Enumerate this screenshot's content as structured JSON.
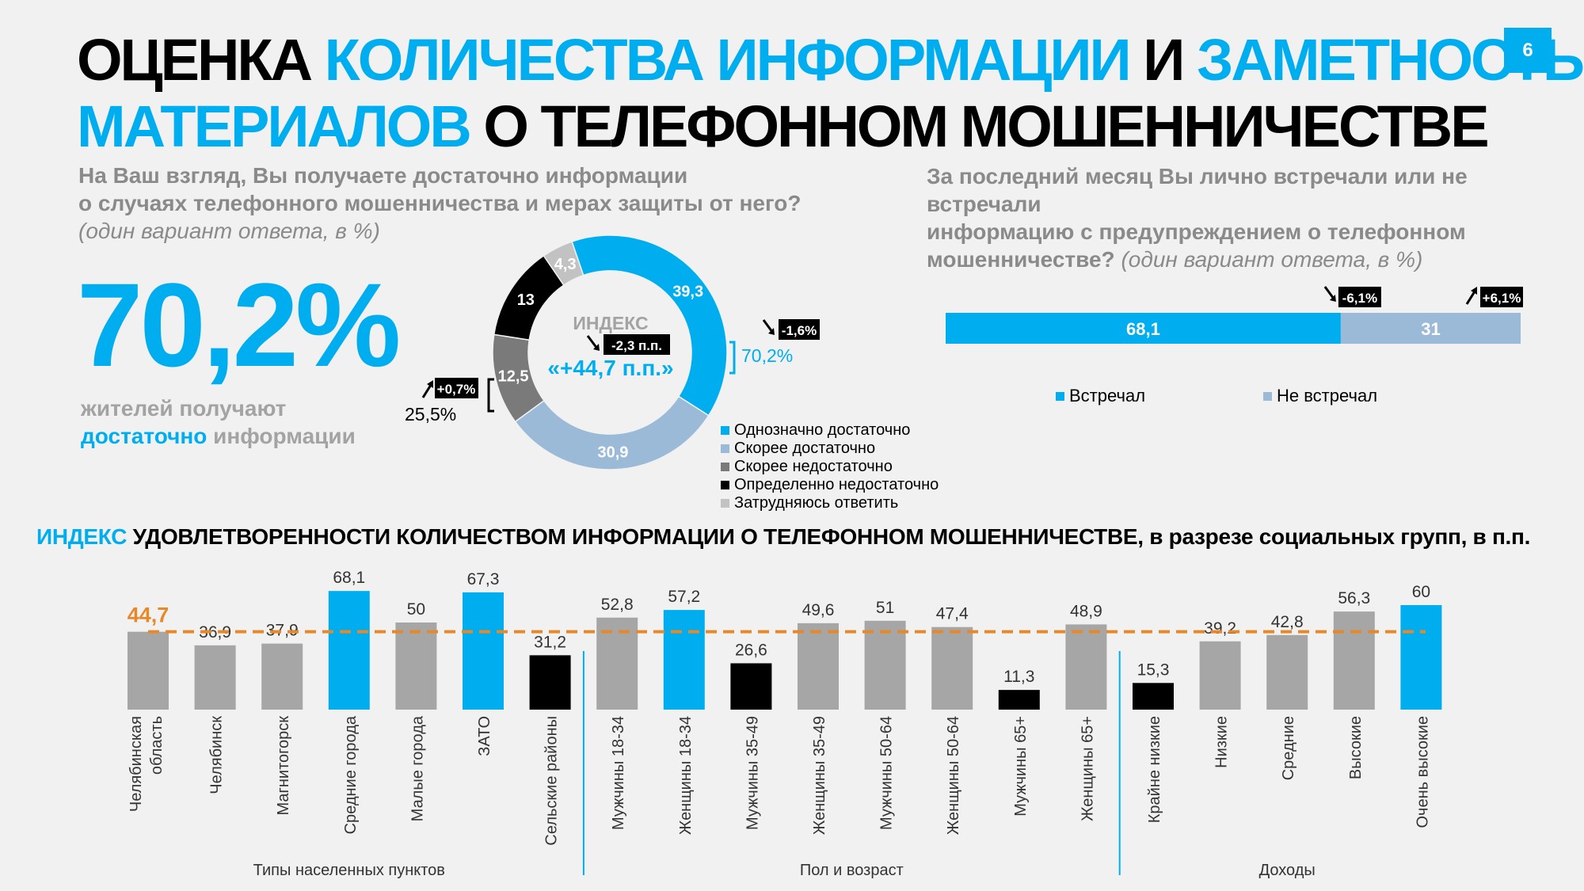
{
  "header": {
    "title_parts": [
      "ОЦЕНКА ",
      "КОЛИЧЕСТВА ИНФОРМАЦИИ",
      " И ",
      "ЗАМЕТНОСТЬ",
      "МАТЕРИАЛОВ",
      " О ТЕЛЕФОННОМ МОШЕННИЧЕСТВЕ"
    ],
    "page_number": "6"
  },
  "question_left": {
    "line1": "На Ваш взгляд, Вы получаете достаточно информации",
    "line2": "о случаях телефонного мошенничества и мерах защиты от него?",
    "note": "(один вариант ответа, в %)"
  },
  "question_right": {
    "line1": "За последний месяц Вы лично встречали или не встречали",
    "line2": "информацию с предупреждением о телефонном",
    "line3": "мошенничестве?",
    "note": " (один вариант ответа, в %)"
  },
  "kpi": {
    "value": "70,2%",
    "text1": "жителей получают",
    "text2_highlight": "достаточно",
    "text2_rest": " информации"
  },
  "donut": {
    "index_label": "ИНДЕКС",
    "index_value": "«+44,7 п.п.»",
    "index_change": "-2,3 п.п.",
    "positive_total": "70,2%",
    "positive_change": "-1,6%",
    "negative_total": "25,5%",
    "negative_change": "+0,7%"
  },
  "bar_section": {
    "title_highlight": "ИНДЕКС",
    "title_rest": " УДОВЛЕТВОРЕННОСТИ КОЛИЧЕСТВОМ ИНФОРМАЦИИ О ТЕЛЕФОННОМ МОШЕННИЧЕСТВЕ, в разрезе социальных групп, в п.п.",
    "reference_label": "44,7"
  },
  "colors": {
    "accent_blue": "#00aeef",
    "light_blue": "#9bbad8",
    "dark_gray": "#7a7a7a",
    "black": "#000000",
    "light_gray": "#c2c2c2",
    "bar_gray": "#a6a6a6",
    "reference_line": "#e6892a"
  },
  "chart_data": [
    {
      "type": "pie",
      "variant": "donut",
      "slices": [
        {
          "label": "Однозначно достаточно",
          "value": 39.3,
          "display": "39,3",
          "color": "#00aeef"
        },
        {
          "label": "Скорее достаточно",
          "value": 30.9,
          "display": "30,9",
          "color": "#9bbad8"
        },
        {
          "label": "Скорее недостаточно",
          "value": 12.5,
          "display": "12,5",
          "color": "#7a7a7a"
        },
        {
          "label": "Определенно недостаточно",
          "value": 13,
          "display": "13",
          "color": "#000000"
        },
        {
          "label": "Затрудняюсь ответить",
          "value": 4.3,
          "display": "4,3",
          "color": "#c2c2c2"
        }
      ]
    },
    {
      "type": "bar",
      "orientation": "horizontal-stacked",
      "segments": [
        {
          "label": "Встречал",
          "value": 68.1,
          "display": "68,1",
          "change": "-6,1%",
          "direction": "down",
          "color": "#00aeef"
        },
        {
          "label": "Не встречал",
          "value": 31,
          "display": "31",
          "change": "+6,1%",
          "direction": "up",
          "color": "#9bbad8"
        }
      ]
    },
    {
      "type": "bar",
      "ylim": [
        0,
        75
      ],
      "reference": {
        "value": 44.7,
        "label": "44,7"
      },
      "groups": [
        {
          "label": "Типы населенных пунктов",
          "start": 0,
          "end": 6
        },
        {
          "label": "Пол и возраст",
          "start": 7,
          "end": 14
        },
        {
          "label": "Доходы",
          "start": 15,
          "end": 19
        }
      ],
      "bars": [
        {
          "category": "Челябинская область",
          "value": 44.7,
          "display": "",
          "color": "gray"
        },
        {
          "category": "Челябинск",
          "value": 36.9,
          "display": "36,9",
          "color": "gray"
        },
        {
          "category": "Магнитогорск",
          "value": 37.9,
          "display": "37,9",
          "color": "gray"
        },
        {
          "category": "Средние города",
          "value": 68.1,
          "display": "68,1",
          "color": "blue"
        },
        {
          "category": "Малые города",
          "value": 50,
          "display": "50",
          "color": "gray"
        },
        {
          "category": "ЗАТО",
          "value": 67.3,
          "display": "67,3",
          "color": "blue"
        },
        {
          "category": "Сельские районы",
          "value": 31.2,
          "display": "31,2",
          "color": "black"
        },
        {
          "category": "Мужчины 18-34",
          "value": 52.8,
          "display": "52,8",
          "color": "gray"
        },
        {
          "category": "Женщины 18-34",
          "value": 57.2,
          "display": "57,2",
          "color": "blue"
        },
        {
          "category": "Мужчины 35-49",
          "value": 26.6,
          "display": "26,6",
          "color": "black"
        },
        {
          "category": "Женщины 35-49",
          "value": 49.6,
          "display": "49,6",
          "color": "gray"
        },
        {
          "category": "Мужчины 50-64",
          "value": 51,
          "display": "51",
          "color": "gray"
        },
        {
          "category": "Женщины 50-64",
          "value": 47.4,
          "display": "47,4",
          "color": "gray"
        },
        {
          "category": "Мужчины 65+",
          "value": 11.3,
          "display": "11,3",
          "color": "black"
        },
        {
          "category": "Женщины 65+",
          "value": 48.9,
          "display": "48,9",
          "color": "gray"
        },
        {
          "category": "Крайне низкие",
          "value": 15.3,
          "display": "15,3",
          "color": "black"
        },
        {
          "category": "Низкие",
          "value": 39.2,
          "display": "39,2",
          "color": "gray"
        },
        {
          "category": "Средние",
          "value": 42.8,
          "display": "42,8",
          "color": "gray"
        },
        {
          "category": "Высокие",
          "value": 56.3,
          "display": "56,3",
          "color": "gray"
        },
        {
          "category": "Очень высокие",
          "value": 60,
          "display": "60",
          "color": "blue"
        }
      ]
    }
  ]
}
